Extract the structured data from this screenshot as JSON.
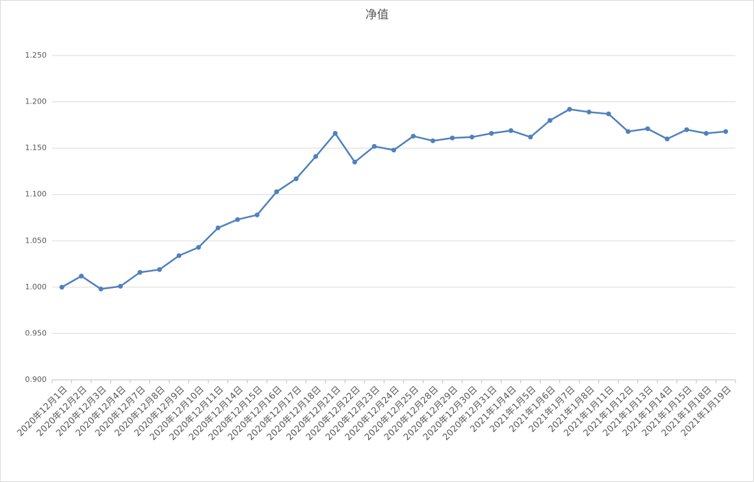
{
  "chart_data": {
    "type": "line",
    "title": "净值",
    "categories": [
      "2020年12月1日",
      "2020年12月2日",
      "2020年12月3日",
      "2020年12月4日",
      "2020年12月7日",
      "2020年12月8日",
      "2020年12月9日",
      "2020年12月10日",
      "2020年12月11日",
      "2020年12月14日",
      "2020年12月15日",
      "2020年12月16日",
      "2020年12月17日",
      "2020年12月18日",
      "2020年12月21日",
      "2020年12月22日",
      "2020年12月23日",
      "2020年12月24日",
      "2020年12月25日",
      "2020年12月28日",
      "2020年12月29日",
      "2020年12月30日",
      "2020年12月31日",
      "2021年1月4日",
      "2021年1月5日",
      "2021年1月6日",
      "2021年1月7日",
      "2021年1月8日",
      "2021年1月11日",
      "2021年1月12日",
      "2021年1月13日",
      "2021年1月14日",
      "2021年1月15日",
      "2021年1月18日",
      "2021年1月19日"
    ],
    "values": [
      1.0,
      1.012,
      0.998,
      1.001,
      1.016,
      1.019,
      1.034,
      1.043,
      1.064,
      1.073,
      1.078,
      1.103,
      1.117,
      1.141,
      1.166,
      1.135,
      1.152,
      1.148,
      1.163,
      1.158,
      1.161,
      1.162,
      1.166,
      1.169,
      1.162,
      1.18,
      1.192,
      1.189,
      1.187,
      1.168,
      1.171,
      1.16,
      1.17,
      1.166,
      1.168
    ],
    "color": "#4f81bd",
    "ylim": [
      0.9,
      1.25
    ],
    "yticks": [
      {
        "value": 0.9,
        "label": "0.900"
      },
      {
        "value": 0.95,
        "label": "0.950"
      },
      {
        "value": 1.0,
        "label": "1.000"
      },
      {
        "value": 1.05,
        "label": "1.050"
      },
      {
        "value": 1.1,
        "label": "1.100"
      },
      {
        "value": 1.15,
        "label": "1.150"
      },
      {
        "value": 1.2,
        "label": "1.200"
      },
      {
        "value": 1.25,
        "label": "1.250"
      }
    ],
    "grid": true
  }
}
